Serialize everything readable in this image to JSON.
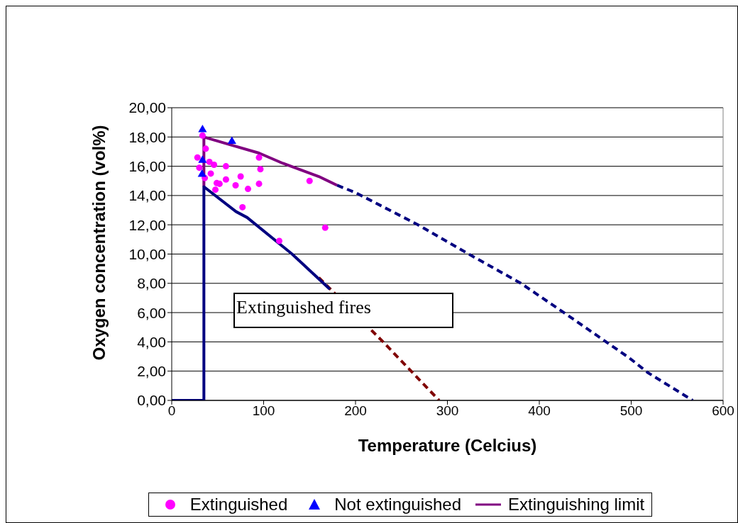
{
  "chart_data": {
    "type": "scatter",
    "xlabel": "Temperature (Celcius)",
    "ylabel": "Oxygen concentration (vol%)",
    "xlim": [
      0,
      600
    ],
    "xticks": [
      0,
      100,
      200,
      300,
      400,
      500,
      600
    ],
    "ylim": [
      0,
      20
    ],
    "yticks": [
      {
        "value": 0,
        "label": "0,00"
      },
      {
        "value": 2,
        "label": "2,00"
      },
      {
        "value": 4,
        "label": "4,00"
      },
      {
        "value": 6,
        "label": "6,00"
      },
      {
        "value": 8,
        "label": "8,00"
      },
      {
        "value": 10,
        "label": "10,00"
      },
      {
        "value": 12,
        "label": "12,00"
      },
      {
        "value": 14,
        "label": "14,00"
      },
      {
        "value": 16,
        "label": "16,00"
      },
      {
        "value": 18,
        "label": "18,00"
      },
      {
        "value": 20,
        "label": "20,00"
      }
    ],
    "grid": "y",
    "legend": "bottom",
    "annotations": [
      "Extinguished fires"
    ],
    "series": [
      {
        "name": "Extinguished",
        "marker": "circle",
        "color": "#ff00ff",
        "x": [
          33.5,
          37,
          28,
          41,
          46,
          30,
          59,
          95,
          96.5,
          42.5,
          36,
          59,
          75,
          49,
          52,
          69.5,
          83,
          95,
          47.5,
          77,
          150,
          117,
          167
        ],
        "values": [
          18.1,
          17.2,
          16.6,
          16.3,
          16.1,
          15.9,
          16.0,
          16.6,
          15.8,
          15.5,
          15.2,
          15.1,
          15.3,
          14.85,
          14.8,
          14.7,
          14.45,
          14.8,
          14.4,
          13.2,
          15.0,
          10.9,
          11.8
        ]
      },
      {
        "name": "Not extinguished",
        "marker": "triangle",
        "color": "#0000ff",
        "x": [
          33.5,
          65.5,
          33.5,
          33
        ],
        "values": [
          18.5,
          17.7,
          16.4,
          15.45
        ]
      },
      {
        "name": "Extinguishing limit",
        "type": "line",
        "marker": "none",
        "line_style": "solid",
        "color": "#800080",
        "x": [
          35,
          35,
          62,
          95,
          121,
          160,
          180
        ],
        "values": [
          14.6,
          18.0,
          17.5,
          16.9,
          16.2,
          15.3,
          14.7
        ]
      },
      {
        "type": "line",
        "marker": "none",
        "line_style": "dashed",
        "color": "#800000",
        "x": [
          160,
          230,
          291
        ],
        "values": [
          8.4,
          4.0,
          0
        ]
      },
      {
        "type": "line",
        "marker": "none",
        "line_style": "solid",
        "color": "#000080",
        "x": [
          0,
          35,
          35,
          70,
          82,
          131,
          172
        ],
        "values": [
          0,
          0,
          14.6,
          12.9,
          12.5,
          10.0,
          7.6
        ]
      },
      {
        "type": "line",
        "marker": "none",
        "line_style": "dashed",
        "color": "#000080",
        "x": [
          180,
          200,
          268,
          326,
          380,
          429,
          498,
          518,
          567
        ],
        "values": [
          14.7,
          14.2,
          12.0,
          9.9,
          8.0,
          5.9,
          2.9,
          1.9,
          0
        ]
      }
    ]
  }
}
